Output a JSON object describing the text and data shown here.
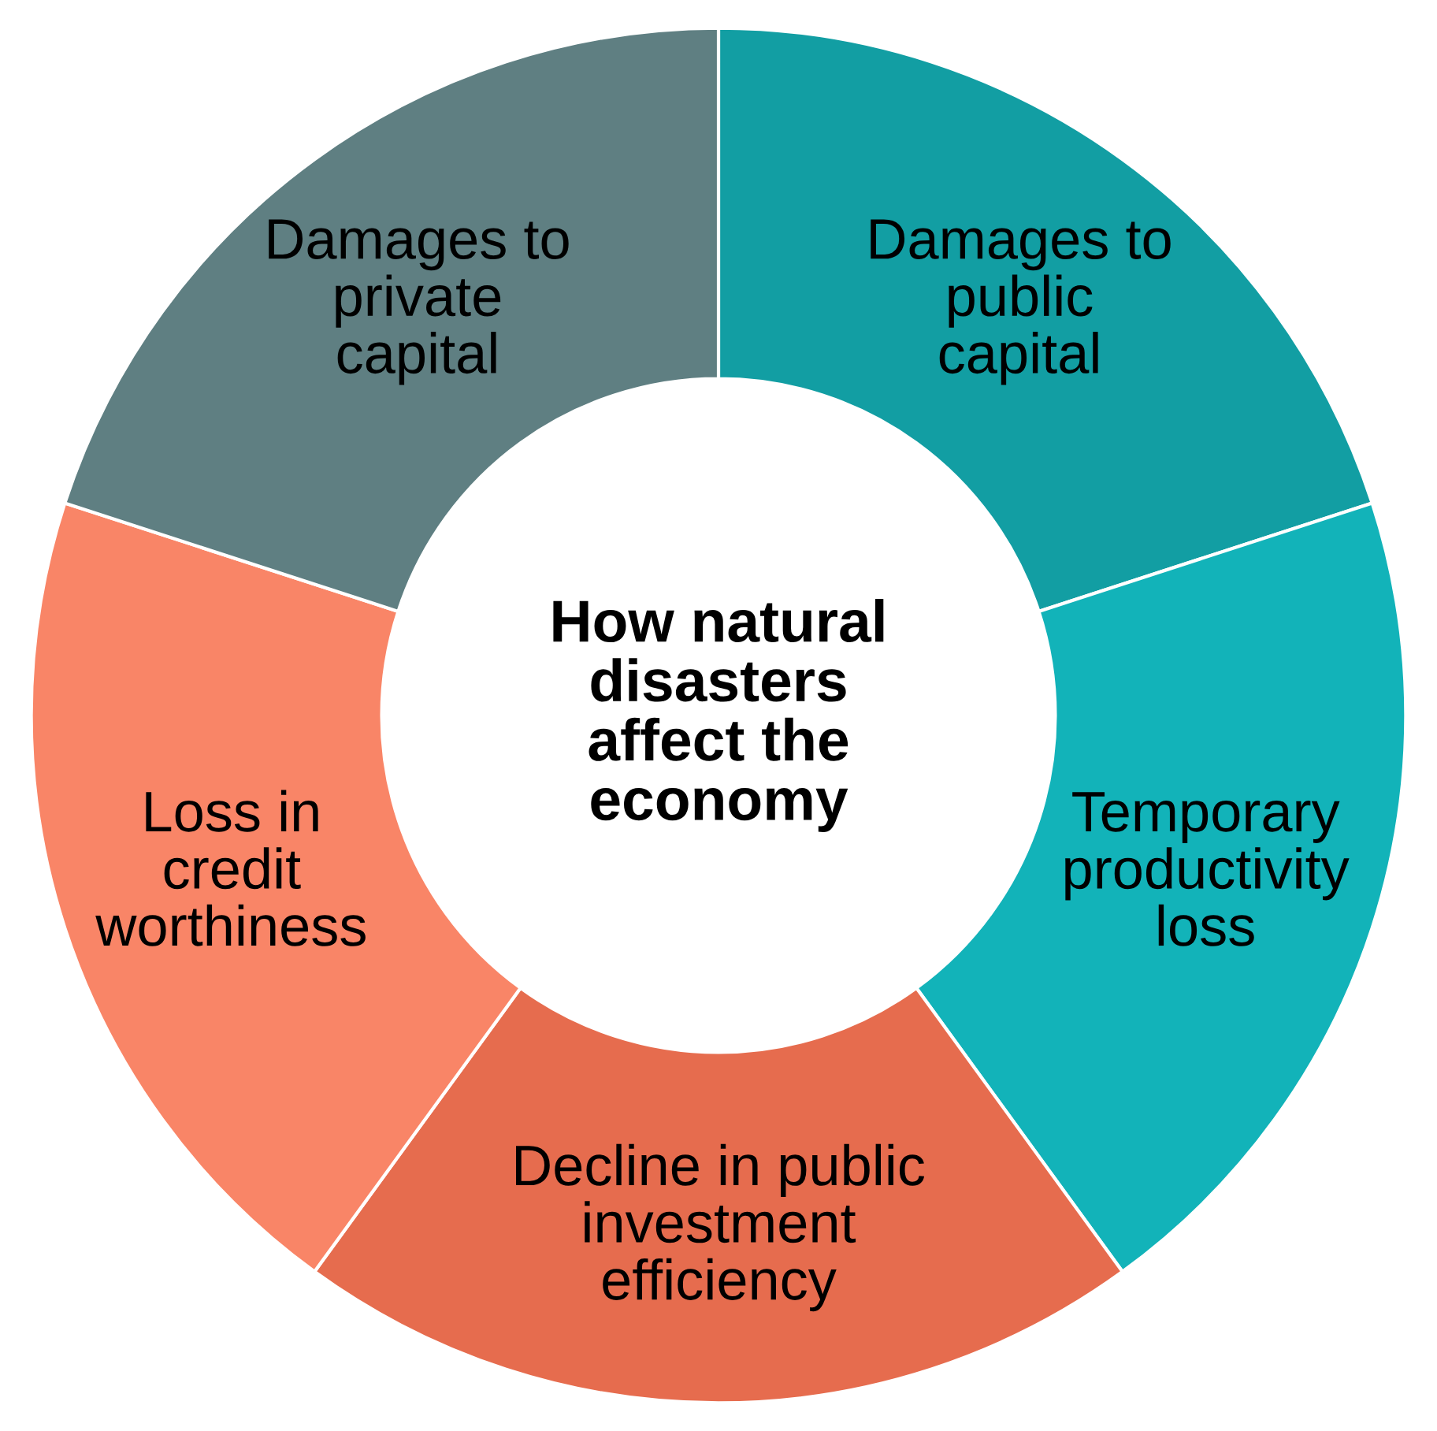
{
  "chart_data": {
    "type": "donut",
    "title": "How natural\ndisasters\naffect the\neconomy",
    "categories": [
      "Damages to\npublic\ncapital",
      "Temporary\nproductivity\nloss",
      "Decline in public\ninvestment\nefficiency",
      "Loss in\ncredit\nworthiness",
      "Damages to\nprivate\ncapital"
    ],
    "values": [
      20,
      20,
      20,
      20,
      20
    ],
    "colors": [
      "#129ea3",
      "#12b3b9",
      "#e66c4e",
      "#f98567",
      "#5f7f82"
    ]
  }
}
